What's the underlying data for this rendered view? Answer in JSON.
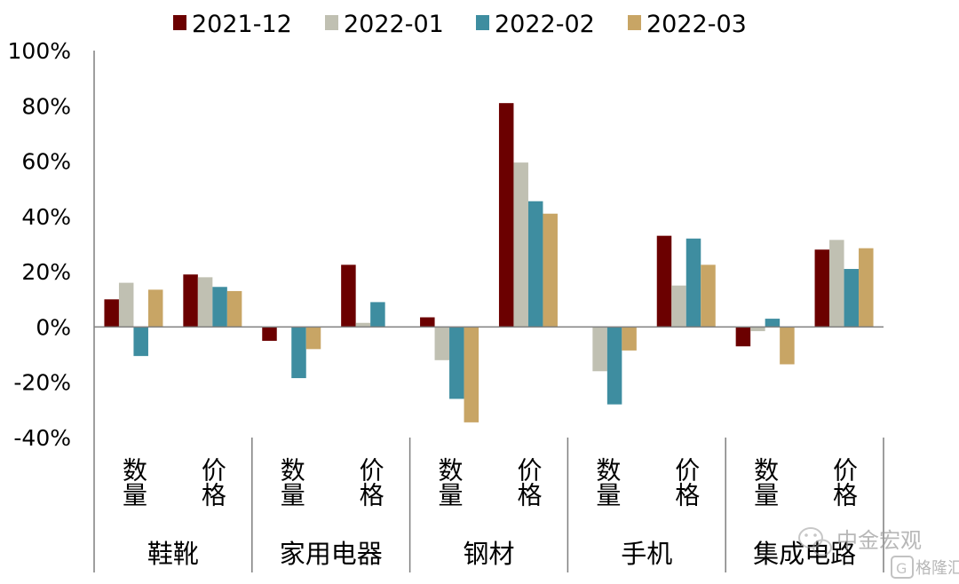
{
  "chart_data": {
    "type": "bar",
    "title": "",
    "xlabel": "",
    "ylabel": "",
    "ylim": [
      -40,
      100
    ],
    "yticks": [
      -40,
      -20,
      0,
      20,
      40,
      60,
      80,
      100
    ],
    "ytick_labels": [
      "-40%",
      "-20%",
      "0%",
      "20%",
      "40%",
      "60%",
      "80%",
      "100%"
    ],
    "legend_position": "top",
    "groups": [
      {
        "label": "鞋靴",
        "subcategories": [
          "数量",
          "价格"
        ]
      },
      {
        "label": "家用电器",
        "subcategories": [
          "数量",
          "价格"
        ]
      },
      {
        "label": "钢材",
        "subcategories": [
          "数量",
          "价格"
        ]
      },
      {
        "label": "手机",
        "subcategories": [
          "数量",
          "价格"
        ]
      },
      {
        "label": "集成电路",
        "subcategories": [
          "数量",
          "价格"
        ]
      }
    ],
    "series": [
      {
        "name": "2021-12",
        "color": "#6b0000",
        "values": [
          10,
          19,
          -5,
          22.5,
          3.5,
          81,
          0,
          33,
          -7,
          28
        ]
      },
      {
        "name": "2022-01",
        "color": "#c0c0b2",
        "values": [
          16,
          18,
          0,
          1.5,
          -12,
          59.5,
          -16,
          15,
          -1.5,
          31.5
        ]
      },
      {
        "name": "2022-02",
        "color": "#3e8da0",
        "values": [
          -10.5,
          14.5,
          -18.5,
          9,
          -26,
          45.5,
          -28,
          32,
          3,
          21
        ]
      },
      {
        "name": "2022-03",
        "color": "#c8a565",
        "values": [
          13.5,
          13,
          -8,
          0,
          -34.5,
          41,
          -8.5,
          22.5,
          -13.5,
          28.5
        ]
      }
    ]
  },
  "watermark": {
    "brand": "中金宏观",
    "site": "格隆汇",
    "wechat_icon": "wechat-icon",
    "logo_icon": "gelonghui-logo-icon"
  }
}
